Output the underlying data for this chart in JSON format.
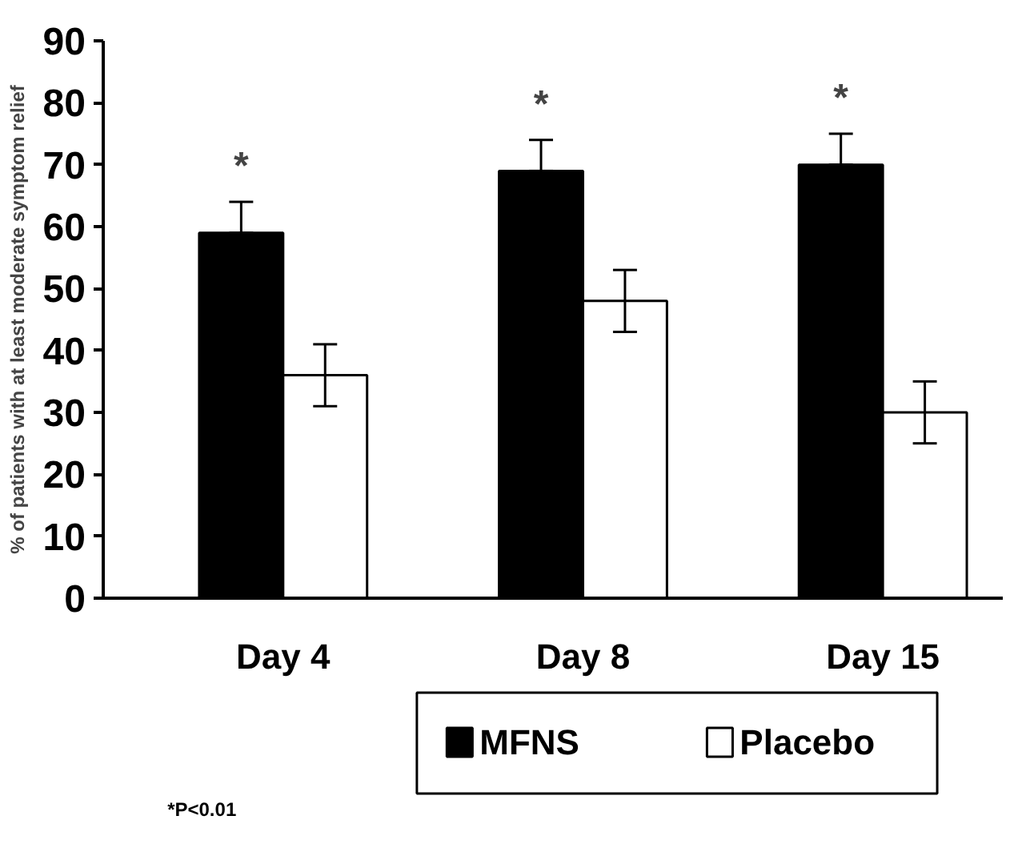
{
  "chart_data": {
    "type": "bar",
    "categories": [
      "Day 4",
      "Day 8",
      "Day 15"
    ],
    "ylabel": "% of patients with at least moderate symptom relief",
    "series": [
      {
        "name": "MFNS",
        "color": "#000000",
        "values": [
          59,
          69,
          70
        ],
        "errors": [
          [
            59,
            64
          ],
          [
            69,
            74
          ],
          [
            70,
            75
          ]
        ]
      },
      {
        "name": "Placebo",
        "color": "#ffffff",
        "values": [
          36,
          48,
          30
        ],
        "errors": [
          5,
          5,
          5
        ]
      }
    ],
    "annotations": [
      "*",
      "*",
      "*",
      "*P<0.01"
    ],
    "ylim": [
      0,
      90
    ],
    "yticks": [
      0,
      10,
      20,
      30,
      40,
      50,
      60,
      70,
      80,
      90
    ],
    "grid": false,
    "legend": "bottom"
  }
}
